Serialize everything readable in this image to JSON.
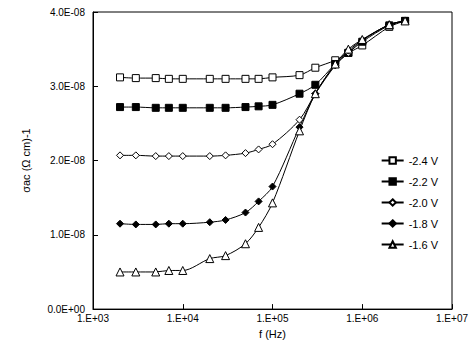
{
  "chart_data": {
    "type": "line",
    "x_label": "f (Hz)",
    "y_label": "σac (Ω cm)-1",
    "log": "x",
    "grid": false,
    "legend": "right",
    "x": [
      2000,
      3000,
      5000,
      7000,
      10000,
      20000,
      30000,
      50000,
      70000,
      100000,
      200000,
      300000,
      500000,
      700000,
      1000000,
      2000000,
      3000000
    ],
    "xlim": [
      1000,
      10000000
    ],
    "xticks": [
      {
        "value": 1000,
        "label": "1.E+03"
      },
      {
        "value": 10000,
        "label": "1.E+04"
      },
      {
        "value": 100000,
        "label": "1.E+05"
      },
      {
        "value": 1000000,
        "label": "1.E+06"
      },
      {
        "value": 10000000,
        "label": "1.E+07"
      }
    ],
    "ylim": [
      0,
      4e-08
    ],
    "yticks": [
      {
        "value": 0,
        "label": "0.0E+00"
      },
      {
        "value": 1e-08,
        "label": "1.0E-08"
      },
      {
        "value": 2e-08,
        "label": "2.0E-08"
      },
      {
        "value": 3e-08,
        "label": "3.0E-08"
      },
      {
        "value": 4e-08,
        "label": "4.0E-08"
      }
    ],
    "series": [
      {
        "name": "-2.4 V",
        "color": "#000000",
        "marker": "square-open",
        "values": [
          3.12e-08,
          3.11e-08,
          3.11e-08,
          3.1e-08,
          3.1e-08,
          3.1e-08,
          3.1e-08,
          3.1e-08,
          3.1e-08,
          3.12e-08,
          3.15e-08,
          3.25e-08,
          3.35e-08,
          3.45e-08,
          3.55e-08,
          3.8e-08,
          3.88e-08
        ]
      },
      {
        "name": "-2.2 V",
        "color": "#000000",
        "marker": "square",
        "values": [
          2.72e-08,
          2.72e-08,
          2.71e-08,
          2.71e-08,
          2.71e-08,
          2.71e-08,
          2.71e-08,
          2.72e-08,
          2.73e-08,
          2.75e-08,
          2.9e-08,
          3.02e-08,
          3.3e-08,
          3.45e-08,
          3.6e-08,
          3.82e-08,
          3.88e-08
        ]
      },
      {
        "name": "-2.0 V",
        "color": "#000000",
        "marker": "diamond-open",
        "values": [
          2.07e-08,
          2.07e-08,
          2.06e-08,
          2.06e-08,
          2.06e-08,
          2.06e-08,
          2.07e-08,
          2.1e-08,
          2.15e-08,
          2.22e-08,
          2.55e-08,
          2.9e-08,
          3.28e-08,
          3.45e-08,
          3.62e-08,
          3.83e-08,
          3.88e-08
        ]
      },
      {
        "name": "-1.8 V",
        "color": "#000000",
        "marker": "diamond",
        "values": [
          1.15e-08,
          1.14e-08,
          1.14e-08,
          1.15e-08,
          1.15e-08,
          1.17e-08,
          1.2e-08,
          1.3e-08,
          1.45e-08,
          1.65e-08,
          2.45e-08,
          2.9e-08,
          3.3e-08,
          3.48e-08,
          3.62e-08,
          3.83e-08,
          3.88e-08
        ]
      },
      {
        "name": "-1.6 V",
        "color": "#000000",
        "marker": "triangle-open",
        "values": [
          5e-09,
          5e-09,
          5e-09,
          5.2e-09,
          5.2e-09,
          6.8e-09,
          7.2e-09,
          8.8e-09,
          1.1e-08,
          1.43e-08,
          2.4e-08,
          2.9e-08,
          3.3e-08,
          3.5e-08,
          3.63e-08,
          3.83e-08,
          3.88e-08
        ]
      }
    ]
  }
}
